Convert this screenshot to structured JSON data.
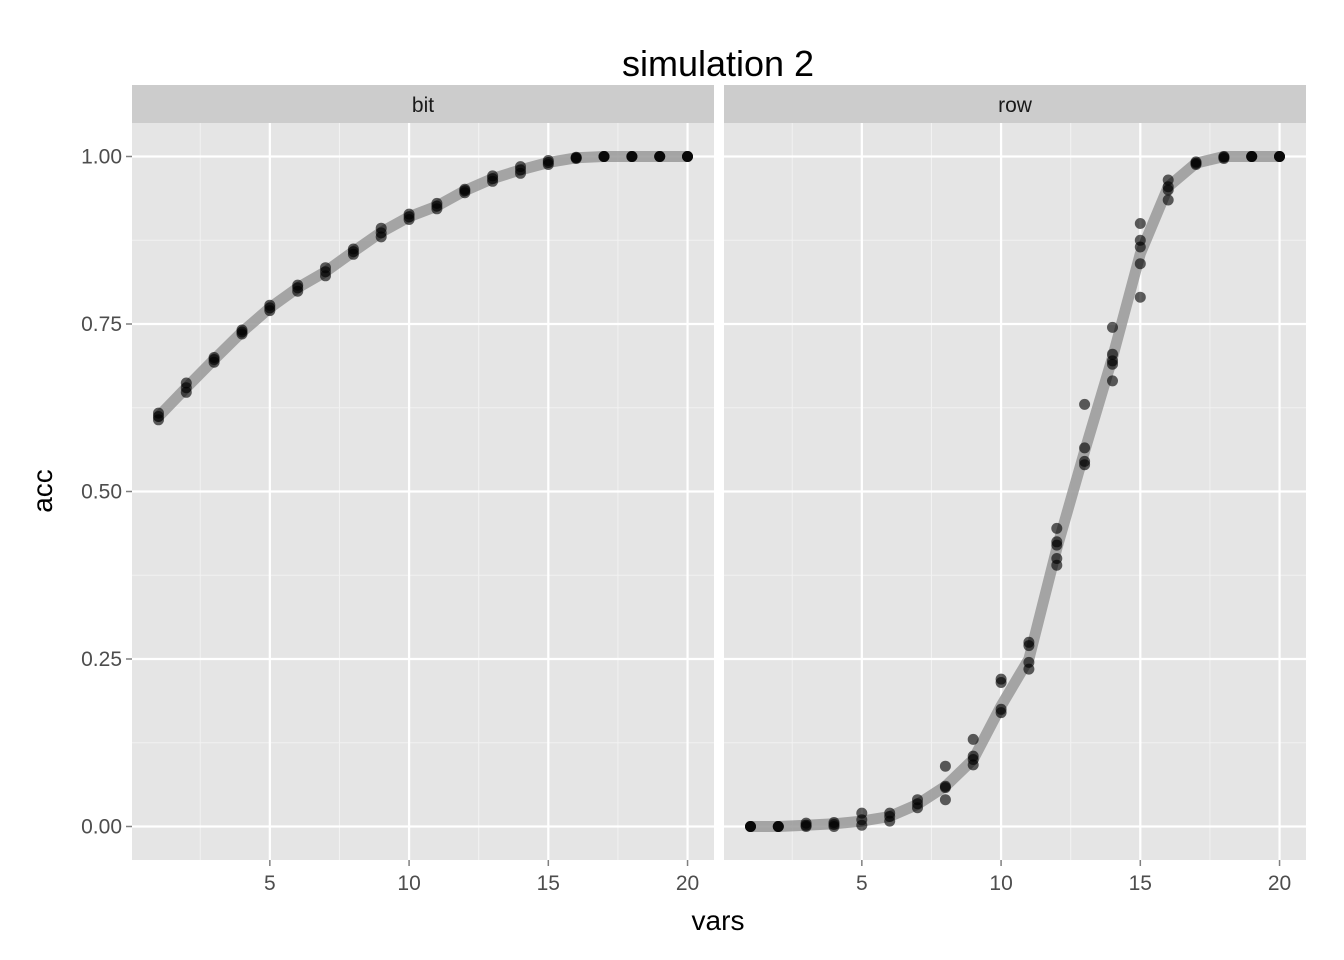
{
  "chart_data": {
    "type": "scatter",
    "title": "simulation 2",
    "xlabel": "vars",
    "ylabel": "acc",
    "xlim": [
      0.05,
      20.95
    ],
    "ylim": [
      -0.05,
      1.05
    ],
    "x_ticks": [
      5,
      10,
      15,
      20
    ],
    "y_ticks": [
      0.0,
      0.25,
      0.5,
      0.75,
      1.0
    ],
    "y_tick_labels": [
      "0.00",
      "0.25",
      "0.50",
      "0.75",
      "1.00"
    ],
    "grid": true,
    "facets": [
      {
        "label": "bit",
        "points": [
          [
            1,
            0.607
          ],
          [
            1,
            0.612
          ],
          [
            1,
            0.617
          ],
          [
            2,
            0.648
          ],
          [
            2,
            0.655
          ],
          [
            2,
            0.662
          ],
          [
            3,
            0.693
          ],
          [
            3,
            0.697
          ],
          [
            3,
            0.7
          ],
          [
            4,
            0.735
          ],
          [
            4,
            0.738
          ],
          [
            4,
            0.741
          ],
          [
            5,
            0.77
          ],
          [
            5,
            0.774
          ],
          [
            5,
            0.778
          ],
          [
            6,
            0.799
          ],
          [
            6,
            0.804
          ],
          [
            6,
            0.808
          ],
          [
            7,
            0.822
          ],
          [
            7,
            0.828
          ],
          [
            7,
            0.834
          ],
          [
            8,
            0.854
          ],
          [
            8,
            0.858
          ],
          [
            8,
            0.862
          ],
          [
            9,
            0.88
          ],
          [
            9,
            0.886
          ],
          [
            9,
            0.893
          ],
          [
            10,
            0.906
          ],
          [
            10,
            0.91
          ],
          [
            10,
            0.914
          ],
          [
            11,
            0.922
          ],
          [
            11,
            0.926
          ],
          [
            11,
            0.93
          ],
          [
            12,
            0.946
          ],
          [
            12,
            0.949
          ],
          [
            12,
            0.951
          ],
          [
            13,
            0.963
          ],
          [
            13,
            0.967
          ],
          [
            13,
            0.971
          ],
          [
            14,
            0.975
          ],
          [
            14,
            0.98
          ],
          [
            14,
            0.985
          ],
          [
            15,
            0.988
          ],
          [
            15,
            0.991
          ],
          [
            15,
            0.994
          ],
          [
            16,
            0.997
          ],
          [
            16,
            0.998
          ],
          [
            16,
            0.999
          ],
          [
            17,
            1.0
          ],
          [
            17,
            1.0
          ],
          [
            17,
            1.0
          ],
          [
            18,
            1.0
          ],
          [
            18,
            1.0
          ],
          [
            18,
            1.0
          ],
          [
            19,
            1.0
          ],
          [
            19,
            1.0
          ],
          [
            19,
            1.0
          ],
          [
            20,
            1.0
          ],
          [
            20,
            1.0
          ],
          [
            20,
            1.0
          ]
        ],
        "line": [
          [
            1,
            0.612
          ],
          [
            2,
            0.655
          ],
          [
            3,
            0.697
          ],
          [
            4,
            0.738
          ],
          [
            5,
            0.774
          ],
          [
            6,
            0.804
          ],
          [
            7,
            0.828
          ],
          [
            8,
            0.858
          ],
          [
            9,
            0.887
          ],
          [
            10,
            0.91
          ],
          [
            11,
            0.926
          ],
          [
            12,
            0.949
          ],
          [
            13,
            0.967
          ],
          [
            14,
            0.98
          ],
          [
            15,
            0.991
          ],
          [
            16,
            0.998
          ],
          [
            17,
            1.0
          ],
          [
            18,
            1.0
          ],
          [
            19,
            1.0
          ],
          [
            20,
            1.0
          ]
        ]
      },
      {
        "label": "row",
        "points": [
          [
            1,
            0.0
          ],
          [
            1,
            0.0
          ],
          [
            1,
            0.0
          ],
          [
            2,
            0.0
          ],
          [
            2,
            0.0
          ],
          [
            2,
            0.0
          ],
          [
            3,
            0.0
          ],
          [
            3,
            0.002
          ],
          [
            3,
            0.005
          ],
          [
            4,
            0.0
          ],
          [
            4,
            0.003
          ],
          [
            4,
            0.006
          ],
          [
            5,
            0.002
          ],
          [
            5,
            0.01
          ],
          [
            5,
            0.02
          ],
          [
            6,
            0.008
          ],
          [
            6,
            0.015
          ],
          [
            6,
            0.02
          ],
          [
            7,
            0.028
          ],
          [
            7,
            0.034
          ],
          [
            7,
            0.04
          ],
          [
            8,
            0.04
          ],
          [
            8,
            0.058
          ],
          [
            8,
            0.06
          ],
          [
            8,
            0.09
          ],
          [
            9,
            0.092
          ],
          [
            9,
            0.1
          ],
          [
            9,
            0.105
          ],
          [
            9,
            0.13
          ],
          [
            10,
            0.17
          ],
          [
            10,
            0.175
          ],
          [
            10,
            0.215
          ],
          [
            10,
            0.22
          ],
          [
            11,
            0.235
          ],
          [
            11,
            0.245
          ],
          [
            11,
            0.27
          ],
          [
            11,
            0.275
          ],
          [
            12,
            0.39
          ],
          [
            12,
            0.4
          ],
          [
            12,
            0.42
          ],
          [
            12,
            0.425
          ],
          [
            12,
            0.445
          ],
          [
            13,
            0.54
          ],
          [
            13,
            0.545
          ],
          [
            13,
            0.565
          ],
          [
            13,
            0.63
          ],
          [
            14,
            0.665
          ],
          [
            14,
            0.69
          ],
          [
            14,
            0.695
          ],
          [
            14,
            0.705
          ],
          [
            14,
            0.745
          ],
          [
            15,
            0.79
          ],
          [
            15,
            0.84
          ],
          [
            15,
            0.865
          ],
          [
            15,
            0.875
          ],
          [
            15,
            0.9
          ],
          [
            16,
            0.935
          ],
          [
            16,
            0.95
          ],
          [
            16,
            0.955
          ],
          [
            16,
            0.965
          ],
          [
            17,
            0.988
          ],
          [
            17,
            0.99
          ],
          [
            17,
            0.992
          ],
          [
            18,
            0.997
          ],
          [
            18,
            0.999
          ],
          [
            18,
            1.0
          ],
          [
            19,
            1.0
          ],
          [
            19,
            1.0
          ],
          [
            19,
            1.0
          ],
          [
            20,
            1.0
          ],
          [
            20,
            1.0
          ],
          [
            20,
            1.0
          ]
        ],
        "line": [
          [
            1,
            0.0
          ],
          [
            2,
            0.0
          ],
          [
            3,
            0.002
          ],
          [
            4,
            0.004
          ],
          [
            5,
            0.008
          ],
          [
            6,
            0.015
          ],
          [
            7,
            0.033
          ],
          [
            8,
            0.06
          ],
          [
            9,
            0.1
          ],
          [
            10,
            0.18
          ],
          [
            11,
            0.25
          ],
          [
            12,
            0.415
          ],
          [
            13,
            0.56
          ],
          [
            14,
            0.7
          ],
          [
            15,
            0.855
          ],
          [
            16,
            0.955
          ],
          [
            17,
            0.99
          ],
          [
            18,
            1.0
          ],
          [
            19,
            1.0
          ],
          [
            20,
            1.0
          ]
        ]
      }
    ]
  },
  "colors": {
    "panel_bg": "#e5e5e5",
    "strip_bg": "#cccccc",
    "grid_major": "#ffffff",
    "grid_minor": "#f2f2f2",
    "point": "#000000",
    "line": "#999999"
  }
}
